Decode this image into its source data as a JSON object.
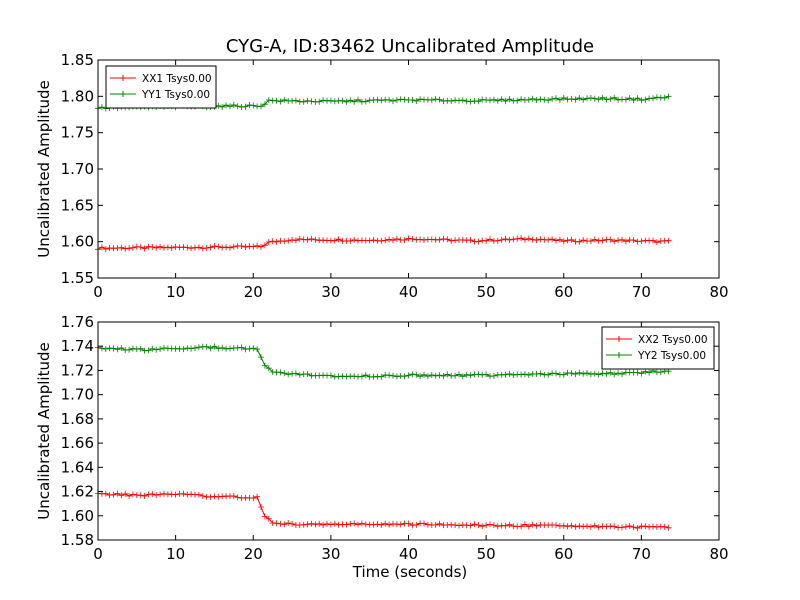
{
  "figure": {
    "title": "CYG-A, ID:83462 Uncalibrated Amplitude",
    "xlabel": "Time (seconds)"
  },
  "chart_data": [
    {
      "type": "line",
      "title": "CYG-A, ID:83462 Uncalibrated Amplitude",
      "xlabel": "",
      "ylabel": "Uncalibrated Amplitude",
      "xlim": [
        0,
        80
      ],
      "ylim": [
        1.55,
        1.85
      ],
      "xticks": [
        "0",
        "10",
        "20",
        "30",
        "40",
        "50",
        "60",
        "70",
        "80"
      ],
      "yticks": [
        "1.55",
        "1.60",
        "1.65",
        "1.70",
        "1.75",
        "1.80",
        "1.85"
      ],
      "grid": false,
      "legend": "top-left",
      "series": [
        {
          "name": "XX1 Tsys0.00",
          "color": "#ff0000",
          "x": [
            0,
            21,
            22,
            25,
            35,
            41,
            48,
            56,
            60,
            66,
            73.5
          ],
          "y": [
            1.591,
            1.593,
            1.599,
            1.603,
            1.602,
            1.604,
            1.601,
            1.604,
            1.601,
            1.602,
            1.6
          ]
        },
        {
          "name": "YY1 Tsys0.00",
          "color": "#008000",
          "x": [
            0,
            10,
            21,
            22,
            30,
            40,
            50,
            57,
            65,
            70,
            73.5
          ],
          "y": [
            1.784,
            1.786,
            1.787,
            1.794,
            1.793,
            1.795,
            1.794,
            1.796,
            1.797,
            1.796,
            1.799
          ]
        }
      ]
    },
    {
      "type": "line",
      "title": "",
      "xlabel": "Time (seconds)",
      "ylabel": "Uncalibrated Amplitude",
      "xlim": [
        0,
        80
      ],
      "ylim": [
        1.58,
        1.76
      ],
      "xticks": [
        "0",
        "10",
        "20",
        "30",
        "40",
        "50",
        "60",
        "70",
        "80"
      ],
      "yticks": [
        "1.58",
        "1.60",
        "1.62",
        "1.64",
        "1.66",
        "1.68",
        "1.70",
        "1.72",
        "1.74",
        "1.76"
      ],
      "grid": false,
      "legend": "top-right",
      "series": [
        {
          "name": "XX2 Tsys0.00",
          "color": "#ff0000",
          "x": [
            0,
            5,
            10,
            15,
            20.5,
            21.5,
            22.5,
            25,
            30,
            40,
            50,
            60,
            73.5
          ],
          "y": [
            1.618,
            1.617,
            1.618,
            1.616,
            1.615,
            1.6,
            1.594,
            1.593,
            1.593,
            1.593,
            1.592,
            1.592,
            1.59
          ]
        },
        {
          "name": "YY2 Tsys0.00",
          "color": "#008000",
          "x": [
            0,
            5,
            10,
            15,
            20.5,
            21.5,
            22.5,
            25,
            30,
            40,
            50,
            60,
            70,
            73.5
          ],
          "y": [
            1.739,
            1.737,
            1.738,
            1.739,
            1.738,
            1.724,
            1.718,
            1.717,
            1.715,
            1.716,
            1.716,
            1.717,
            1.718,
            1.72
          ]
        }
      ]
    }
  ]
}
